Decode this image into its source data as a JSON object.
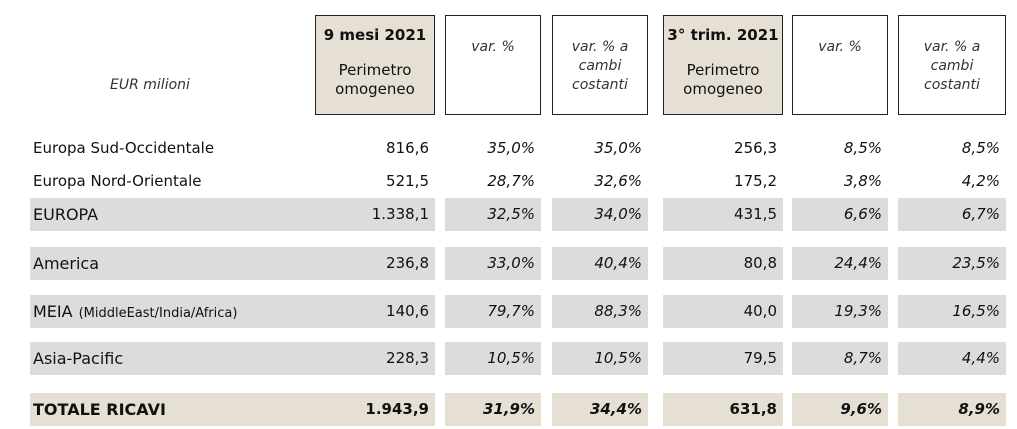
{
  "unit_label": "EUR milioni",
  "headers": [
    {
      "title": "9 mesi 2021",
      "lines": [
        "Perimetro",
        "omogeneo"
      ]
    },
    {
      "lines": [
        "var. %"
      ]
    },
    {
      "lines": [
        "var. % a",
        "cambi",
        "costanti"
      ]
    },
    {
      "title": "3° trim. 2021",
      "lines": [
        "Perimetro",
        "omogeneo"
      ]
    },
    {
      "lines": [
        "var. %"
      ]
    },
    {
      "lines": [
        "var. % a",
        "cambi",
        "costanti"
      ]
    }
  ],
  "table": {
    "rows": [
      {
        "label": "Europa Sud-Occidentale",
        "values": [
          "816,6",
          "35,0%",
          "35,0%",
          "256,3",
          "8,5%",
          "8,5%"
        ]
      },
      {
        "label": "Europa Nord-Orientale",
        "values": [
          "521,5",
          "28,7%",
          "32,6%",
          "175,2",
          "3,8%",
          "4,2%"
        ]
      },
      {
        "label": "EUROPA",
        "values": [
          "1.338,1",
          "32,5%",
          "34,0%",
          "431,5",
          "6,6%",
          "6,7%"
        ]
      },
      {
        "label": "America",
        "values": [
          "236,8",
          "33,0%",
          "40,4%",
          "80,8",
          "24,4%",
          "23,5%"
        ]
      },
      {
        "label": "MEIA",
        "note": "(MiddleEast/India/Africa)",
        "values": [
          "140,6",
          "79,7%",
          "88,3%",
          "40,0",
          "19,3%",
          "16,5%"
        ]
      },
      {
        "label": "Asia-Pacific",
        "values": [
          "228,3",
          "10,5%",
          "10,5%",
          "79,5",
          "8,7%",
          "4,4%"
        ]
      },
      {
        "label": "TOTALE RICAVI",
        "values": [
          "1.943,9",
          "31,9%",
          "34,4%",
          "631,8",
          "9,6%",
          "8,9%"
        ]
      }
    ]
  }
}
